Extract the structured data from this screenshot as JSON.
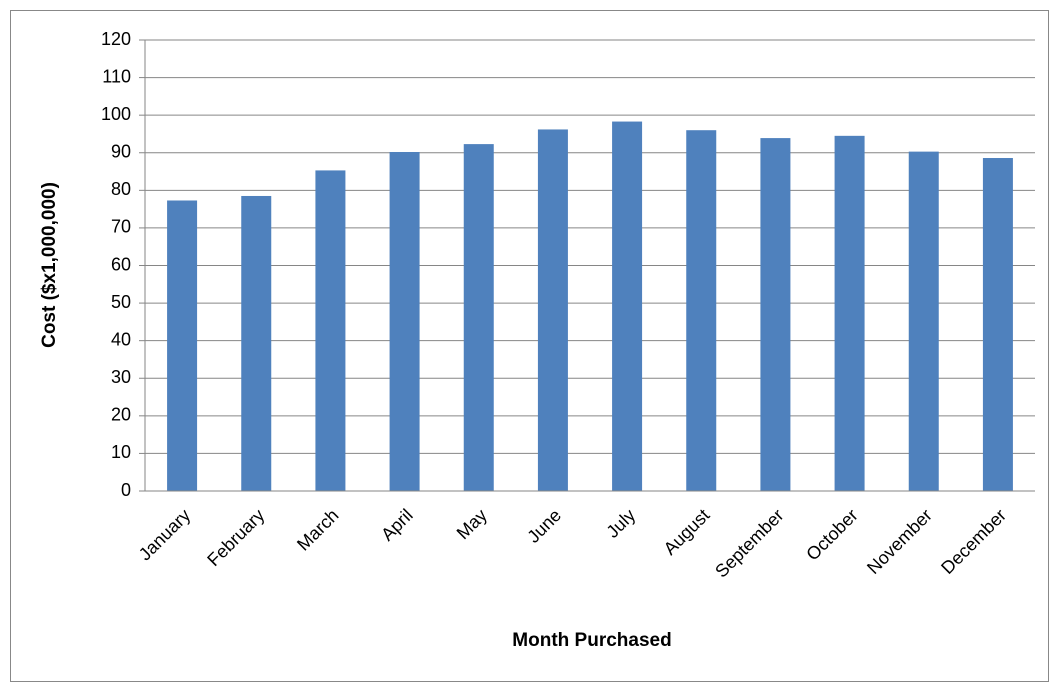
{
  "chart_data": {
    "type": "bar",
    "y_label": "Cost ($x1,000,000)",
    "x_label": "Month Purchased",
    "categories": [
      "January",
      "February",
      "March",
      "April",
      "May",
      "June",
      "July",
      "August",
      "September",
      "October",
      "November",
      "December"
    ],
    "values": [
      77.3,
      78.5,
      85.3,
      90.2,
      92.3,
      96.2,
      98.3,
      96,
      93.9,
      94.5,
      90.3,
      88.6
    ],
    "color": "#4f81bd",
    "ylim": [
      0,
      120
    ],
    "yticks": [
      0,
      10,
      20,
      30,
      40,
      50,
      60,
      70,
      80,
      90,
      100,
      110,
      120
    ],
    "grid": true
  }
}
